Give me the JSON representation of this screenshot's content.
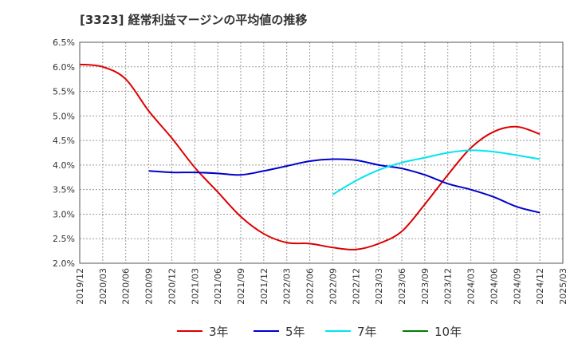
{
  "chart_data": {
    "type": "line",
    "title": "[3323]  経常利益マージンの平均値の推移",
    "y_ticks": [
      "6.5%",
      "6.0%",
      "5.5%",
      "5.0%",
      "4.5%",
      "4.0%",
      "3.5%",
      "3.0%",
      "2.5%",
      "2.0%"
    ],
    "ylim": [
      2.0,
      6.5
    ],
    "y_unit": "%",
    "x_ticks": [
      "2019/12",
      "2020/03",
      "2020/06",
      "2020/09",
      "2020/12",
      "2021/03",
      "2021/06",
      "2021/09",
      "2021/12",
      "2022/03",
      "2022/06",
      "2022/09",
      "2022/12",
      "2023/03",
      "2023/06",
      "2023/09",
      "2023/12",
      "2024/03",
      "2024/06",
      "2024/09",
      "2024/12",
      "2025/03"
    ],
    "grid": true,
    "legend_position": "bottom",
    "series": [
      {
        "name": "3年",
        "color": "#dd0000",
        "x": [
          "2019/12",
          "2020/03",
          "2020/06",
          "2020/09",
          "2020/12",
          "2021/03",
          "2021/06",
          "2021/09",
          "2021/12",
          "2022/03",
          "2022/06",
          "2022/09",
          "2022/12",
          "2023/03",
          "2023/06",
          "2023/09",
          "2023/12",
          "2024/03",
          "2024/06",
          "2024/09",
          "2024/12"
        ],
        "values": [
          6.05,
          6.0,
          5.75,
          5.1,
          4.55,
          3.95,
          3.45,
          2.95,
          2.6,
          2.42,
          2.4,
          2.32,
          2.28,
          2.4,
          2.65,
          3.2,
          3.8,
          4.35,
          4.68,
          4.78,
          4.63
        ]
      },
      {
        "name": "5年",
        "color": "#0000cc",
        "x": [
          "2020/09",
          "2020/12",
          "2021/03",
          "2021/06",
          "2021/09",
          "2021/12",
          "2022/03",
          "2022/06",
          "2022/09",
          "2022/12",
          "2023/03",
          "2023/06",
          "2023/09",
          "2023/12",
          "2024/03",
          "2024/06",
          "2024/09",
          "2024/12"
        ],
        "values": [
          3.88,
          3.85,
          3.85,
          3.83,
          3.8,
          3.88,
          3.98,
          4.08,
          4.12,
          4.1,
          4.0,
          3.93,
          3.8,
          3.62,
          3.5,
          3.35,
          3.15,
          3.03
        ]
      },
      {
        "name": "7年",
        "color": "#00e5ee",
        "x": [
          "2022/09",
          "2022/12",
          "2023/03",
          "2023/06",
          "2023/09",
          "2023/12",
          "2024/03",
          "2024/06",
          "2024/09",
          "2024/12"
        ],
        "values": [
          3.4,
          3.68,
          3.9,
          4.05,
          4.15,
          4.25,
          4.3,
          4.27,
          4.2,
          4.12
        ]
      },
      {
        "name": "10年",
        "color": "#008000",
        "x": [],
        "values": []
      }
    ]
  }
}
